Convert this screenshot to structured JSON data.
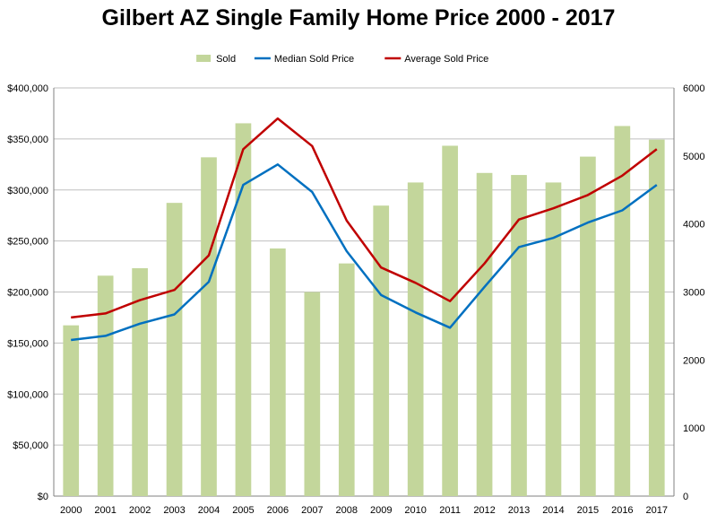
{
  "chart_data": {
    "type": "bar",
    "title": "Gilbert AZ Single Family Home Price 2000 - 2017",
    "categories": [
      "2000",
      "2001",
      "2002",
      "2003",
      "2004",
      "2005",
      "2006",
      "2007",
      "2008",
      "2009",
      "2010",
      "2011",
      "2012",
      "2013",
      "2014",
      "2015",
      "2016",
      "2017"
    ],
    "series": [
      {
        "name": "Sold",
        "type": "bar",
        "axis": "right",
        "color": "#c3d69b",
        "values": [
          2510,
          3240,
          3350,
          4310,
          4980,
          5480,
          3640,
          3000,
          3420,
          4270,
          4610,
          5150,
          4750,
          4720,
          4610,
          4990,
          5440,
          5240
        ]
      },
      {
        "name": "Median Sold Price",
        "type": "line",
        "axis": "left",
        "color": "#0070c0",
        "values": [
          153000,
          157000,
          169000,
          178000,
          210000,
          305000,
          325000,
          298000,
          240000,
          197000,
          180000,
          165000,
          205000,
          244000,
          253000,
          268000,
          280000,
          305000
        ]
      },
      {
        "name": "Average Sold Price",
        "type": "line",
        "axis": "left",
        "color": "#c00000",
        "values": [
          175000,
          179000,
          192000,
          202000,
          236000,
          340000,
          370000,
          343000,
          270000,
          224000,
          209000,
          191000,
          228000,
          271000,
          282000,
          295000,
          314000,
          340000
        ]
      }
    ],
    "left_axis": {
      "ylim": [
        0,
        400000
      ],
      "ticks": [
        "$0",
        "$50,000",
        "$100,000",
        "$150,000",
        "$200,000",
        "$250,000",
        "$300,000",
        "$350,000",
        "$400,000"
      ]
    },
    "right_axis": {
      "ylim": [
        0,
        6000
      ],
      "ticks": [
        "0",
        "1000",
        "2000",
        "3000",
        "4000",
        "5000",
        "6000"
      ]
    },
    "grid": true,
    "legend_position": "top"
  }
}
